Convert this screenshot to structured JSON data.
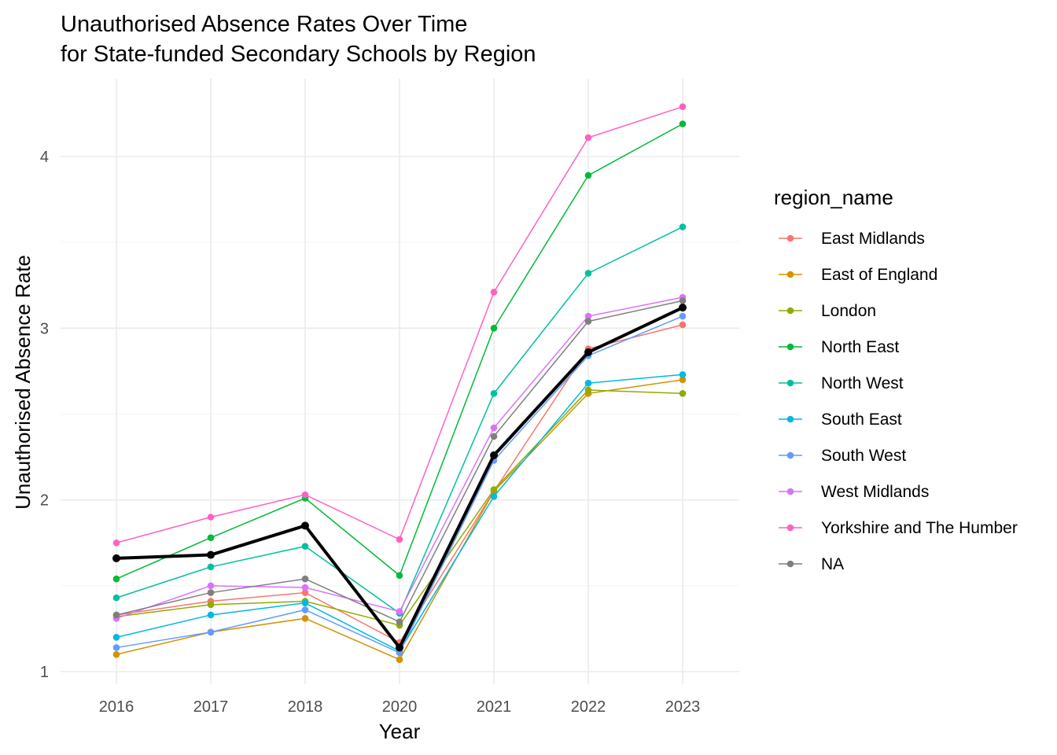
{
  "chart_data": {
    "type": "line",
    "title_line1": "Unauthorised Absence Rates Over Time",
    "title_line2": "for State-funded Secondary Schools by Region",
    "xlabel": "Year",
    "ylabel": "Unauthorised Absence Rate",
    "x": [
      "2016",
      "2017",
      "2018",
      "2020",
      "2021",
      "2022",
      "2023"
    ],
    "ylim": [
      0.95,
      4.35
    ],
    "y_ticks": [
      1,
      2,
      3,
      4
    ],
    "grid": true,
    "legend_title": "region_name",
    "legend_position": "right",
    "series": [
      {
        "name": "East Midlands",
        "color": "#F8766D",
        "values": [
          1.33,
          1.41,
          1.46,
          1.17,
          2.05,
          2.88,
          3.02
        ]
      },
      {
        "name": "East of England",
        "color": "#D39200",
        "values": [
          1.1,
          1.23,
          1.31,
          1.07,
          2.05,
          2.62,
          2.7
        ]
      },
      {
        "name": "London",
        "color": "#93AA00",
        "values": [
          1.32,
          1.39,
          1.41,
          1.27,
          2.06,
          2.64,
          2.62
        ]
      },
      {
        "name": "North East",
        "color": "#00BA38",
        "values": [
          1.54,
          1.78,
          2.01,
          1.56,
          3.0,
          3.89,
          4.19
        ]
      },
      {
        "name": "North West",
        "color": "#00C19F",
        "values": [
          1.43,
          1.61,
          1.73,
          1.34,
          2.62,
          3.32,
          3.59
        ]
      },
      {
        "name": "South East",
        "color": "#00B9E3",
        "values": [
          1.2,
          1.33,
          1.4,
          1.12,
          2.02,
          2.68,
          2.73
        ]
      },
      {
        "name": "South West",
        "color": "#619CFF",
        "values": [
          1.14,
          1.23,
          1.36,
          1.11,
          2.23,
          2.84,
          3.07
        ]
      },
      {
        "name": "West Midlands",
        "color": "#DB72FB",
        "values": [
          1.31,
          1.5,
          1.49,
          1.35,
          2.42,
          3.07,
          3.18
        ]
      },
      {
        "name": "Yorkshire and The Humber",
        "color": "#FF61C3",
        "values": [
          1.75,
          1.9,
          2.03,
          1.77,
          3.21,
          4.11,
          4.29
        ]
      },
      {
        "name": "NA",
        "color": "#7F7F7F",
        "values": [
          1.33,
          1.46,
          1.54,
          1.29,
          2.37,
          3.04,
          3.16
        ]
      }
    ],
    "highlight_series": {
      "color": "#000000",
      "values": [
        1.66,
        1.68,
        1.85,
        1.14,
        2.26,
        2.86,
        3.12
      ]
    }
  }
}
